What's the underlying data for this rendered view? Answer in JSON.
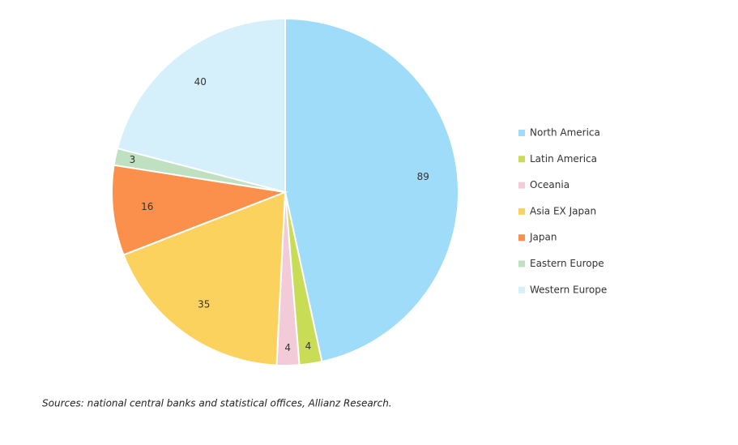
{
  "chart_data": {
    "type": "pie",
    "categories": [
      "North America",
      "Latin America",
      "Oceania",
      "Asia EX Japan",
      "Japan",
      "Eastern Europe",
      "Western Europe"
    ],
    "values": [
      89,
      4,
      4,
      35,
      16,
      3,
      40
    ],
    "colors": [
      "#9edcf9",
      "#c9dc55",
      "#f3cbd8",
      "#fcd25f",
      "#fb8f4c",
      "#bfe0c1",
      "#d5effb"
    ],
    "legend": "right",
    "source": "Sources: national central banks and statistical offices, Allianz Research."
  }
}
